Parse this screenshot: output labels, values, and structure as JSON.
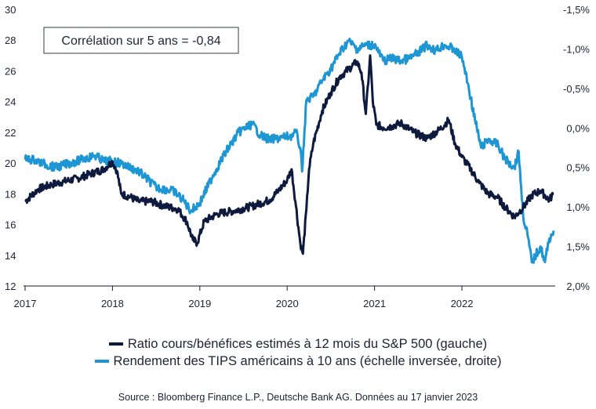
{
  "chart_data": {
    "type": "line",
    "annotation": "Corrélation sur 5 ans = -0,84",
    "x_tick_labels": [
      "2017",
      "2018",
      "2019",
      "2020",
      "2021",
      "2022"
    ],
    "x_ticks": [
      2017,
      2018,
      2019,
      2020,
      2021,
      2022
    ],
    "xlim": [
      2017,
      2023.05
    ],
    "y_left": {
      "ticks": [
        30,
        28,
        26,
        24,
        22,
        20,
        18,
        16,
        14,
        12
      ],
      "labels": [
        "30",
        "28",
        "26",
        "24",
        "22",
        "20",
        "18",
        "16",
        "14",
        "12"
      ],
      "lim": [
        12,
        30
      ]
    },
    "y_right": {
      "inverted": true,
      "ticks": [
        -1.5,
        -1.0,
        -0.5,
        0.0,
        0.5,
        1.0,
        1.5,
        2.0
      ],
      "labels": [
        "-1,5%",
        "-1,0%",
        "-0,5%",
        "0,0%",
        "0,5%",
        "1,0%",
        "1,5%",
        "2,0%"
      ],
      "lim": [
        -1.5,
        2.0
      ]
    },
    "series": [
      {
        "name": "Ratio cours/bénéfices estimés à 12 mois du S&P 500 (gauche)",
        "axis": "left",
        "color": "#0e1a3d",
        "x": [
          2017.0,
          2017.15,
          2017.3,
          2017.45,
          2017.6,
          2017.75,
          2017.9,
          2018.0,
          2018.05,
          2018.1,
          2018.2,
          2018.3,
          2018.45,
          2018.6,
          2018.75,
          2018.85,
          2018.92,
          2018.97,
          2019.05,
          2019.2,
          2019.4,
          2019.6,
          2019.8,
          2019.9,
          2020.0,
          2020.05,
          2020.1,
          2020.15,
          2020.18,
          2020.22,
          2020.25,
          2020.3,
          2020.4,
          2020.5,
          2020.6,
          2020.7,
          2020.8,
          2020.85,
          2020.9,
          2020.95,
          2020.98,
          2021.02,
          2021.1,
          2021.2,
          2021.3,
          2021.45,
          2021.6,
          2021.75,
          2021.85,
          2021.92,
          2022.0,
          2022.1,
          2022.2,
          2022.3,
          2022.4,
          2022.5,
          2022.6,
          2022.7,
          2022.8,
          2022.9,
          2023.0,
          2023.05
        ],
        "values": [
          17.5,
          18.3,
          18.6,
          18.8,
          19.0,
          19.3,
          19.6,
          20.1,
          19.5,
          18.0,
          17.8,
          17.5,
          17.5,
          17.2,
          17.0,
          16.2,
          15.0,
          14.8,
          16.2,
          16.7,
          16.9,
          17.2,
          17.6,
          18.2,
          18.9,
          19.6,
          17.2,
          14.8,
          14.1,
          17.0,
          19.6,
          21.3,
          23.4,
          24.6,
          25.6,
          26.1,
          26.6,
          25.9,
          23.2,
          27.0,
          24.0,
          22.5,
          22.3,
          22.4,
          22.6,
          22.0,
          21.6,
          22.2,
          22.8,
          21.3,
          20.4,
          19.6,
          18.7,
          18.0,
          17.8,
          17.1,
          16.5,
          17.1,
          17.9,
          18.2,
          17.6,
          18.0
        ]
      },
      {
        "name": "Rendement des TIPS américains à 10 ans (échelle inversée, droite)",
        "axis": "right",
        "color": "#1e96d4",
        "x": [
          2017.0,
          2017.1,
          2017.2,
          2017.35,
          2017.5,
          2017.65,
          2017.8,
          2017.9,
          2018.0,
          2018.1,
          2018.3,
          2018.5,
          2018.7,
          2018.8,
          2018.9,
          2019.0,
          2019.15,
          2019.3,
          2019.45,
          2019.6,
          2019.7,
          2019.8,
          2019.95,
          2020.05,
          2020.1,
          2020.15,
          2020.17,
          2020.22,
          2020.3,
          2020.4,
          2020.5,
          2020.6,
          2020.7,
          2020.8,
          2020.9,
          2021.0,
          2021.05,
          2021.1,
          2021.2,
          2021.3,
          2021.4,
          2021.5,
          2021.6,
          2021.7,
          2021.8,
          2021.9,
          2022.0,
          2022.08,
          2022.15,
          2022.22,
          2022.3,
          2022.4,
          2022.5,
          2022.6,
          2022.65,
          2022.7,
          2022.75,
          2022.8,
          2022.85,
          2022.9,
          2022.95,
          2023.0,
          2023.05
        ],
        "values": [
          0.4,
          0.4,
          0.45,
          0.5,
          0.45,
          0.4,
          0.35,
          0.42,
          0.42,
          0.45,
          0.55,
          0.75,
          0.8,
          0.9,
          1.05,
          0.95,
          0.6,
          0.3,
          0.05,
          -0.05,
          0.1,
          0.15,
          0.12,
          0.1,
          0.05,
          0.25,
          0.55,
          -0.35,
          -0.4,
          -0.6,
          -0.75,
          -0.95,
          -1.1,
          -1.0,
          -1.05,
          -1.05,
          -0.95,
          -0.85,
          -0.88,
          -0.85,
          -0.88,
          -0.95,
          -1.05,
          -0.98,
          -1.05,
          -1.0,
          -0.9,
          -0.5,
          -0.1,
          0.25,
          0.15,
          0.2,
          0.4,
          0.5,
          0.3,
          1.1,
          1.35,
          1.7,
          1.6,
          1.5,
          1.7,
          1.4,
          1.3
        ]
      }
    ],
    "legend_position": "bottom",
    "grid": false
  },
  "source": "Source : Bloomberg Finance L.P., Deutsche Bank AG. Données au 17 janvier 2023"
}
